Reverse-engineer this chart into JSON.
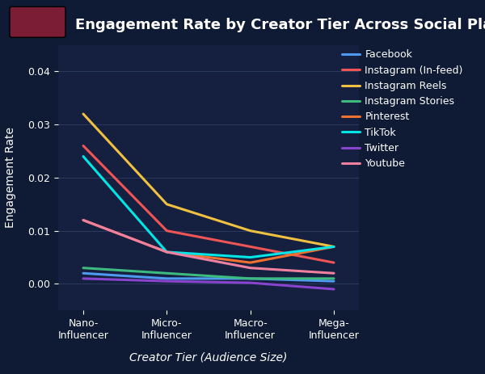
{
  "title": "Engagement Rate by Creator Tier Across Social Platforms",
  "xlabel": "Creator Tier (Audience Size)",
  "ylabel": "Engagement Rate",
  "background_color": "#0f1b35",
  "plot_bg_color": "#152040",
  "grid_color": "#2a3a5c",
  "text_color": "#ffffff",
  "categories": [
    "Nano-\nInfluencer",
    "Micro-\nInfluencer",
    "Macro-\nInfluencer",
    "Mega-\nInfluencer"
  ],
  "series": [
    {
      "label": "Facebook",
      "color": "#4e9af1",
      "values": [
        0.002,
        0.001,
        0.001,
        0.0005
      ]
    },
    {
      "label": "Instagram (In-feed)",
      "color": "#f05555",
      "values": [
        0.026,
        0.01,
        0.007,
        0.004
      ]
    },
    {
      "label": "Instagram Reels",
      "color": "#f0c040",
      "values": [
        0.032,
        0.015,
        0.01,
        0.007
      ]
    },
    {
      "label": "Instagram Stories",
      "color": "#3dba7e",
      "values": [
        0.003,
        0.002,
        0.001,
        0.001
      ]
    },
    {
      "label": "Pinterest",
      "color": "#f07030",
      "values": [
        0.012,
        0.006,
        0.004,
        0.007
      ]
    },
    {
      "label": "TikTok",
      "color": "#00e5e5",
      "values": [
        0.024,
        0.006,
        0.005,
        0.007
      ]
    },
    {
      "label": "Twitter",
      "color": "#8844cc",
      "values": [
        0.001,
        0.0005,
        0.0002,
        -0.001
      ]
    },
    {
      "label": "Youtube",
      "color": "#f080a0",
      "values": [
        0.012,
        0.006,
        0.003,
        0.002
      ]
    }
  ],
  "ylim": [
    -0.005,
    0.045
  ],
  "yticks": [
    0.0,
    0.01,
    0.02,
    0.03,
    0.04
  ],
  "line_width": 2.2,
  "title_fontsize": 13,
  "axis_label_fontsize": 10,
  "tick_fontsize": 9,
  "legend_fontsize": 9,
  "icon_bg_color": "#7b1e35",
  "icon_colors": [
    "#c0305a",
    "#e04060",
    "#f06080"
  ]
}
